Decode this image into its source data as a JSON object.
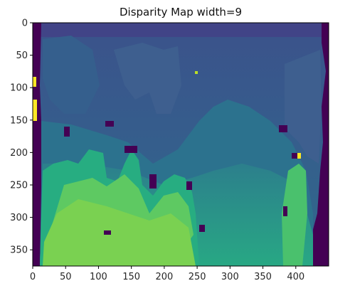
{
  "chart_data": {
    "type": "heatmap",
    "title": "Disparity Map width=9",
    "xlabel": "",
    "ylabel": "",
    "x_ticks": [
      0,
      50,
      100,
      150,
      200,
      250,
      300,
      350,
      400
    ],
    "y_ticks": [
      0,
      50,
      100,
      150,
      200,
      250,
      300,
      350
    ],
    "xlim": [
      0,
      450
    ],
    "ylim": [
      375,
      0
    ],
    "grid": false,
    "legend": "none",
    "colormap": "viridis",
    "palette": {
      "deep_purple": "#440154",
      "indigo": "#3b528b",
      "slate_blue": "#3e5f8f",
      "teal_blue": "#2c728e",
      "teal": "#21908d",
      "sea_green": "#27ad81",
      "green": "#5ec962",
      "lime": "#7ad151",
      "yellow": "#fde725"
    }
  }
}
